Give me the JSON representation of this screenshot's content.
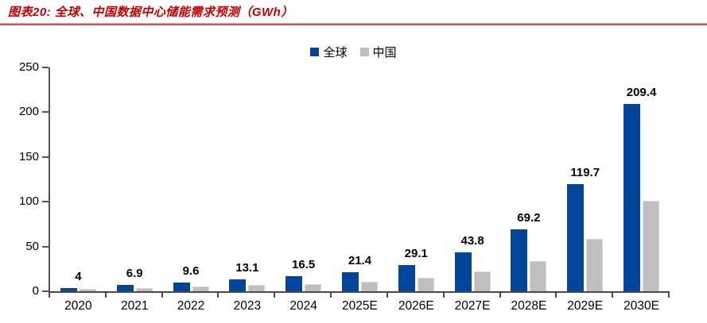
{
  "header": {
    "title": "图表20:  全球、中国数据中心储能需求预测（GWh）"
  },
  "colors": {
    "global_bar": "#04459C",
    "china_bar": "#BFBFBF",
    "title_red": "#C00000",
    "rule_red": "#C4565A",
    "axis": "#4a4a4a"
  },
  "legend": {
    "items": [
      {
        "label": "全球",
        "color": "#04459C"
      },
      {
        "label": "中国",
        "color": "#BFBFBF"
      }
    ]
  },
  "chart_data": {
    "type": "bar",
    "title": "图表20: 全球、中国数据中心储能需求预测（GWh）",
    "categories": [
      "2020",
      "2021",
      "2022",
      "2023",
      "2024",
      "2025E",
      "2026E",
      "2027E",
      "2028E",
      "2029E",
      "2030E"
    ],
    "series": [
      {
        "name": "全球",
        "color": "#04459C",
        "values": [
          4,
          6.9,
          9.6,
          13.1,
          16.5,
          21.4,
          29.1,
          43.8,
          69.2,
          119.7,
          209.4
        ],
        "data_labels": [
          "4",
          "6.9",
          "9.6",
          "13.1",
          "16.5",
          "21.4",
          "29.1",
          "43.8",
          "69.2",
          "119.7",
          "209.4"
        ]
      },
      {
        "name": "中国",
        "color": "#BFBFBF",
        "values": [
          2.3,
          3.8,
          5.2,
          6.8,
          8.2,
          10.7,
          15.1,
          22.2,
          33.4,
          58.9,
          101.3
        ],
        "data_labels": null
      }
    ],
    "xlabel": "",
    "ylabel": "",
    "ylim": [
      0,
      250
    ],
    "yticks": [
      0,
      50,
      100,
      150,
      200,
      250
    ],
    "grid": false,
    "legend_position": "top-center"
  }
}
